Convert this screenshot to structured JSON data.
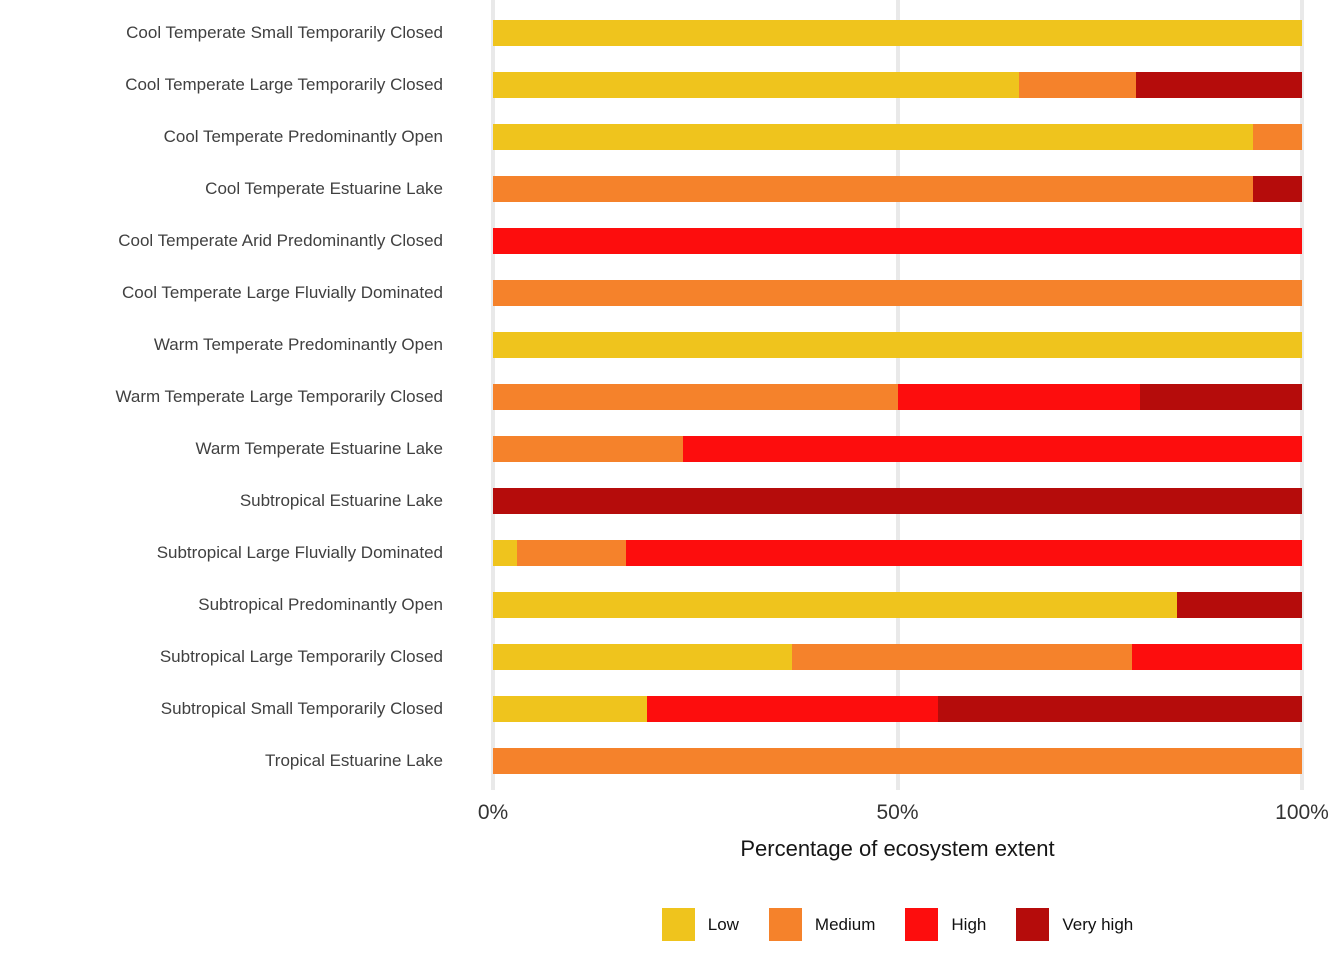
{
  "figure": {
    "xlabel": "Percentage of ecosystem extent"
  },
  "chart_data": {
    "type": "bar",
    "orientation": "horizontal",
    "stacked": true,
    "title": "",
    "xlabel": "Percentage of ecosystem extent",
    "ylabel": "",
    "xlim": [
      0,
      100
    ],
    "x_ticks": [
      "0%",
      "50%",
      "100%"
    ],
    "x_tick_values": [
      0,
      50,
      100
    ],
    "grid": "vertical major gridlines at 0%, 50%, 100%",
    "legend_position": "bottom-center",
    "categories": [
      "Cool Temperate Small Temporarily Closed",
      "Cool Temperate Large Temporarily Closed",
      "Cool Temperate Predominantly Open",
      "Cool Temperate Estuarine Lake",
      "Cool Temperate Arid Predominantly Closed",
      "Cool Temperate Large Fluvially Dominated",
      "Warm Temperate Predominantly Open",
      "Warm Temperate Large Temporarily Closed",
      "Warm Temperate Estuarine Lake",
      "Subtropical Estuarine Lake",
      "Subtropical Large Fluvially Dominated",
      "Subtropical Predominantly Open",
      "Subtropical Large Temporarily Closed",
      "Subtropical Small Temporarily Closed",
      "Tropical Estuarine Lake"
    ],
    "series": [
      {
        "name": "Low",
        "color": "#EFC41D",
        "values": [
          100,
          65,
          94,
          0,
          0,
          0,
          100,
          0,
          0,
          0,
          3,
          84.5,
          37,
          19,
          0
        ]
      },
      {
        "name": "Medium",
        "color": "#F5822B",
        "values": [
          0,
          14.5,
          6,
          94,
          0,
          100,
          0,
          50,
          23.5,
          0,
          13.5,
          0,
          42,
          0,
          100
        ]
      },
      {
        "name": "High",
        "color": "#FD0D0D",
        "values": [
          0,
          0,
          0,
          0,
          100,
          0,
          0,
          30,
          76.5,
          0,
          83.5,
          0,
          21,
          36,
          0
        ]
      },
      {
        "name": "Very high",
        "color": "#B50C0B",
        "values": [
          0,
          20.5,
          0,
          6,
          0,
          0,
          0,
          20,
          0,
          100,
          0,
          15.5,
          0,
          45,
          0
        ]
      }
    ]
  },
  "colors": {
    "background": "#ffffff",
    "gridline": "#e9e9e9",
    "category_label_text": "#404040",
    "axis_tick_text": "#333333",
    "axis_title_text": "#161616"
  }
}
